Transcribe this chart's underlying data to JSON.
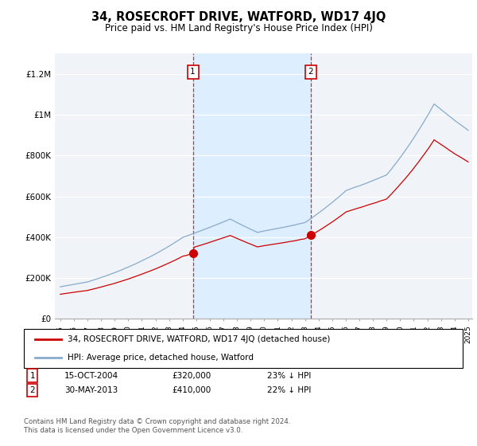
{
  "title": "34, ROSECROFT DRIVE, WATFORD, WD17 4JQ",
  "subtitle": "Price paid vs. HM Land Registry's House Price Index (HPI)",
  "ylim": [
    0,
    1300000
  ],
  "yticks": [
    0,
    200000,
    400000,
    600000,
    800000,
    1000000,
    1200000
  ],
  "ytick_labels": [
    "£0",
    "£200K",
    "£400K",
    "£600K",
    "£800K",
    "£1M",
    "£1.2M"
  ],
  "sale1_year": 2004.79,
  "sale1_value": 320000,
  "sale2_year": 2013.41,
  "sale2_value": 410000,
  "legend_line1": "34, ROSECROFT DRIVE, WATFORD, WD17 4JQ (detached house)",
  "legend_line2": "HPI: Average price, detached house, Watford",
  "annotation1_date": "15-OCT-2004",
  "annotation1_price": "£320,000",
  "annotation1_hpi": "23% ↓ HPI",
  "annotation2_date": "30-MAY-2013",
  "annotation2_price": "£410,000",
  "annotation2_hpi": "22% ↓ HPI",
  "footer": "Contains HM Land Registry data © Crown copyright and database right 2024.\nThis data is licensed under the Open Government Licence v3.0.",
  "red_color": "#cc0000",
  "blue_color": "#88aacc",
  "shade_color": "#ddeeff",
  "bg_color": "#f0f4f8",
  "grid_color": "#ffffff",
  "x_start_year": 1995,
  "x_end_year": 2025
}
